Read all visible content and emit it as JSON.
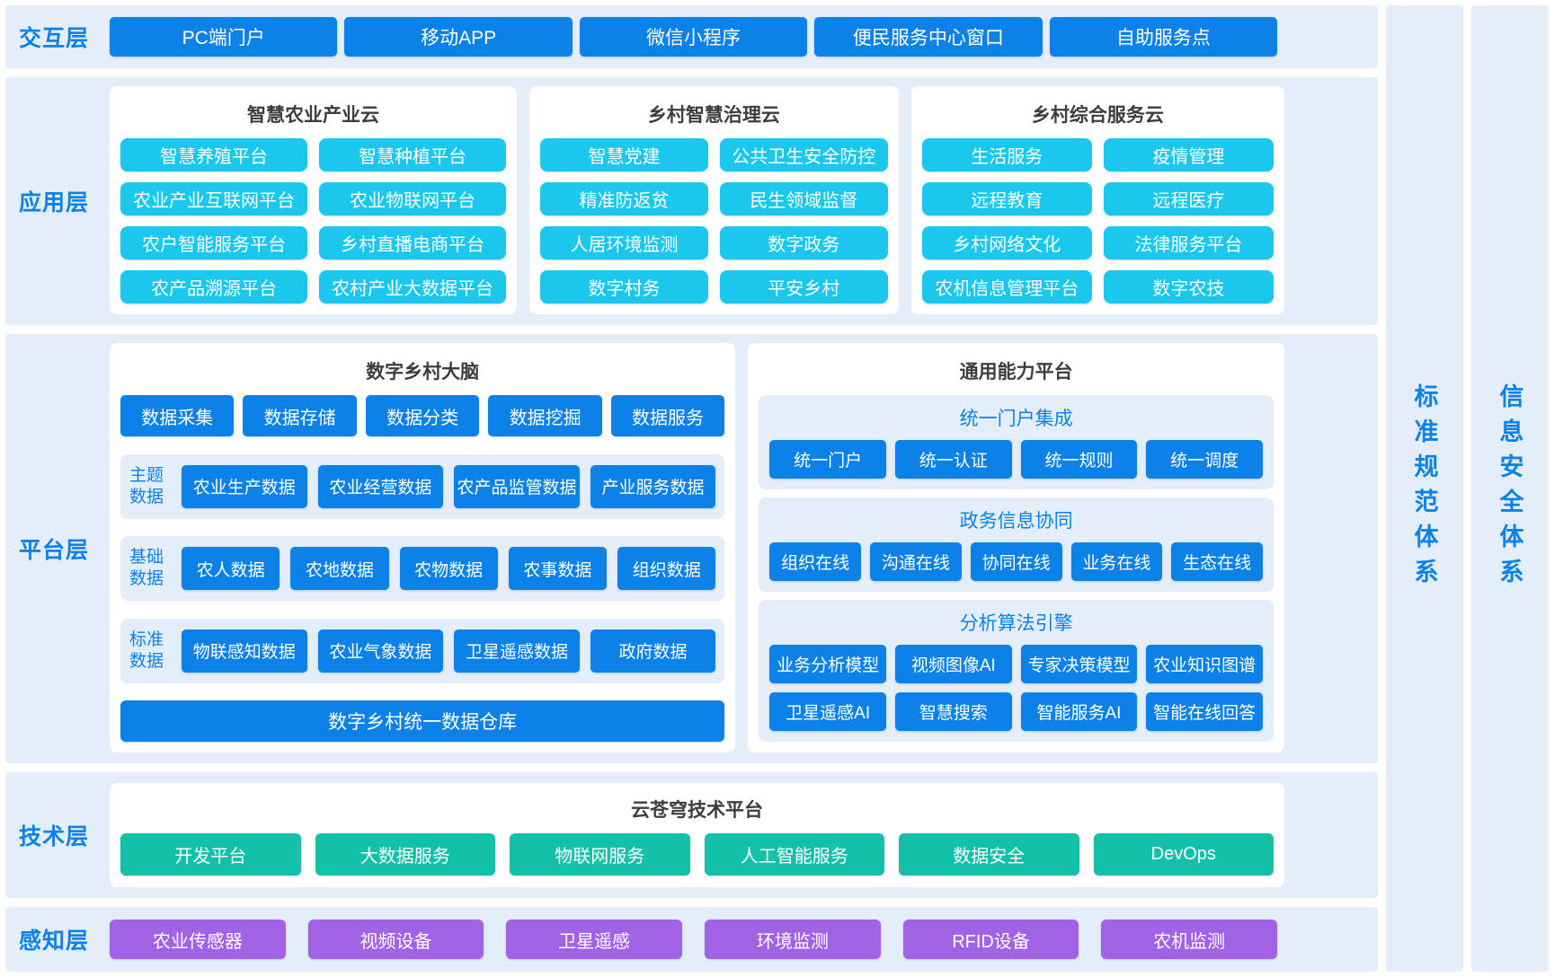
{
  "colors": {
    "primary_blue": "#0c82e8",
    "cyan": "#1bc7ec",
    "teal": "#13c0a8",
    "purple": "#a262e5",
    "panel_bg": "#e4eefa",
    "card_bg": "#ffffff",
    "title_text": "#3d3d3d",
    "button_text": "#ffffff"
  },
  "layers": {
    "interaction": {
      "label": "交互层",
      "items": [
        "PC端门户",
        "移动APP",
        "微信小程序",
        "便民服务中心窗口",
        "自助服务点"
      ]
    },
    "application": {
      "label": "应用层",
      "groups": [
        {
          "title": "智慧农业产业云",
          "items": [
            "智慧养殖平台",
            "智慧种植平台",
            "农业产业互联网平台",
            "农业物联网平台",
            "农户智能服务平台",
            "乡村直播电商平台",
            "农产品溯源平台",
            "农村产业大数据平台"
          ]
        },
        {
          "title": "乡村智慧治理云",
          "items": [
            "智慧党建",
            "公共卫生安全防控",
            "精准防返贫",
            "民生领域监督",
            "人居环境监测",
            "数字政务",
            "数字村务",
            "平安乡村"
          ]
        },
        {
          "title": "乡村综合服务云",
          "items": [
            "生活服务",
            "疫情管理",
            "远程教育",
            "远程医疗",
            "乡村网络文化",
            "法律服务平台",
            "农机信息管理平台",
            "数字农技"
          ]
        }
      ]
    },
    "platform": {
      "label": "平台层",
      "brain": {
        "title": "数字乡村大脑",
        "top_row": [
          "数据采集",
          "数据存储",
          "数据分类",
          "数据挖掘",
          "数据服务"
        ],
        "data_rows": [
          {
            "label": "主题数据",
            "items": [
              "农业生产数据",
              "农业经营数据",
              "农产品监管数据",
              "产业服务数据"
            ]
          },
          {
            "label": "基础数据",
            "items": [
              "农人数据",
              "农地数据",
              "农物数据",
              "农事数据",
              "组织数据"
            ]
          },
          {
            "label": "标准数据",
            "items": [
              "物联感知数据",
              "农业气象数据",
              "卫星遥感数据",
              "政府数据"
            ]
          }
        ],
        "warehouse": "数字乡村统一数据仓库"
      },
      "capability": {
        "title": "通用能力平台",
        "sections": [
          {
            "title": "统一门户集成",
            "rows": [
              [
                "统一门户",
                "统一认证",
                "统一规则",
                "统一调度"
              ]
            ]
          },
          {
            "title": "政务信息协同",
            "rows": [
              [
                "组织在线",
                "沟通在线",
                "协同在线",
                "业务在线",
                "生态在线"
              ]
            ]
          },
          {
            "title": "分析算法引擎",
            "rows": [
              [
                "业务分析模型",
                "视频图像AI",
                "专家决策模型",
                "农业知识图谱"
              ],
              [
                "卫星遥感AI",
                "智慧搜索",
                "智能服务AI",
                "智能在线回答"
              ]
            ]
          }
        ]
      }
    },
    "technology": {
      "label": "技术层",
      "title": "云苍穹技术平台",
      "items": [
        "开发平台",
        "大数据服务",
        "物联网服务",
        "人工智能服务",
        "数据安全",
        "DevOps"
      ]
    },
    "perception": {
      "label": "感知层",
      "items": [
        "农业传感器",
        "视频设备",
        "卫星遥感",
        "环境监测",
        "RFID设备",
        "农机监测"
      ]
    }
  },
  "side_bars": [
    {
      "label": "标准规范体系"
    },
    {
      "label": "信息安全体系"
    }
  ]
}
